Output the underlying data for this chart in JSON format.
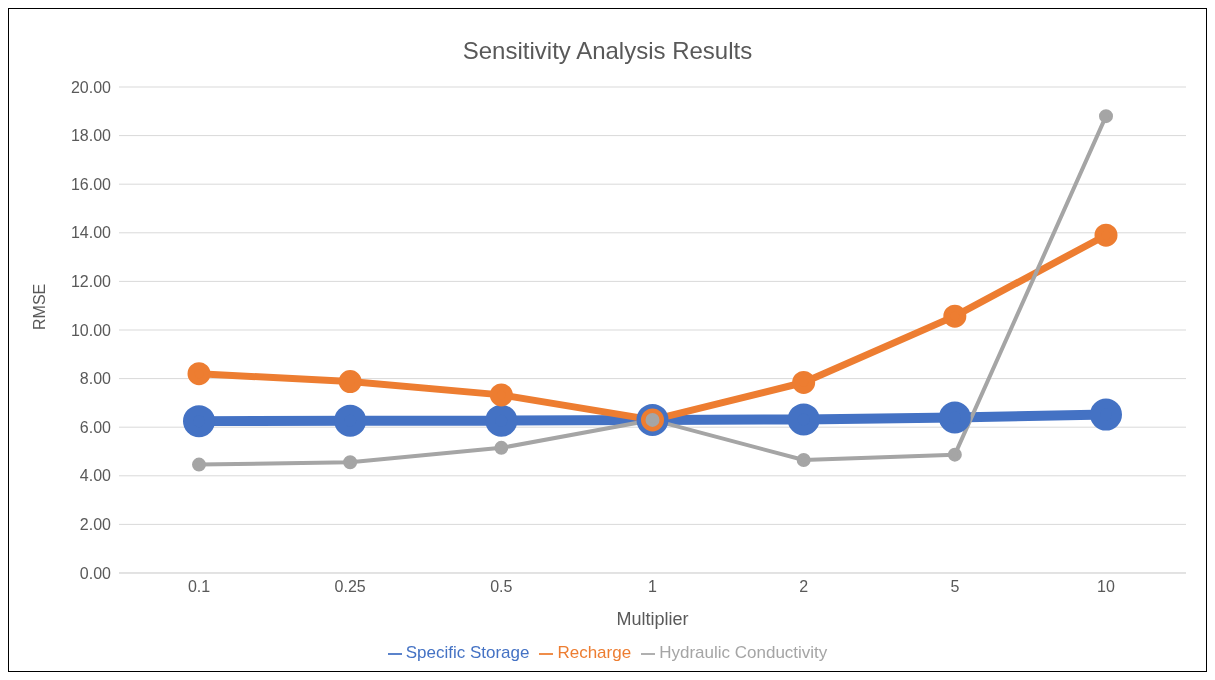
{
  "chart_data": {
    "type": "line",
    "title": "Sensitivity Analysis Results",
    "xlabel": "Multiplier",
    "ylabel": "RMSE",
    "categories": [
      "0.1",
      "0.25",
      "0.5",
      "1",
      "2",
      "5",
      "10"
    ],
    "series": [
      {
        "name": "Specific Storage",
        "color": "#4472c4",
        "values": [
          6.25,
          6.27,
          6.27,
          6.3,
          6.32,
          6.4,
          6.52
        ]
      },
      {
        "name": "Recharge",
        "color": "#ed7d31",
        "values": [
          8.2,
          7.88,
          7.33,
          6.3,
          7.84,
          10.57,
          13.9
        ]
      },
      {
        "name": "Hydraulic Conductivity",
        "color": "#a5a5a5",
        "values": [
          4.46,
          4.56,
          5.15,
          6.3,
          4.65,
          4.87,
          18.8
        ]
      }
    ],
    "ylim": [
      0,
      20
    ],
    "yticks": [
      {
        "value": 0,
        "label": "0.00"
      },
      {
        "value": 2,
        "label": "2.00"
      },
      {
        "value": 4,
        "label": "4.00"
      },
      {
        "value": 6,
        "label": "6.00"
      },
      {
        "value": 8,
        "label": "8.00"
      },
      {
        "value": 10,
        "label": "10.00"
      },
      {
        "value": 12,
        "label": "12.00"
      },
      {
        "value": 14,
        "label": "14.00"
      },
      {
        "value": 16,
        "label": "16.00"
      },
      {
        "value": 18,
        "label": "18.00"
      },
      {
        "value": 20,
        "label": "20.00"
      }
    ],
    "grid": "y",
    "legend": "bottom",
    "marker": "circle",
    "line_style": "solid"
  }
}
